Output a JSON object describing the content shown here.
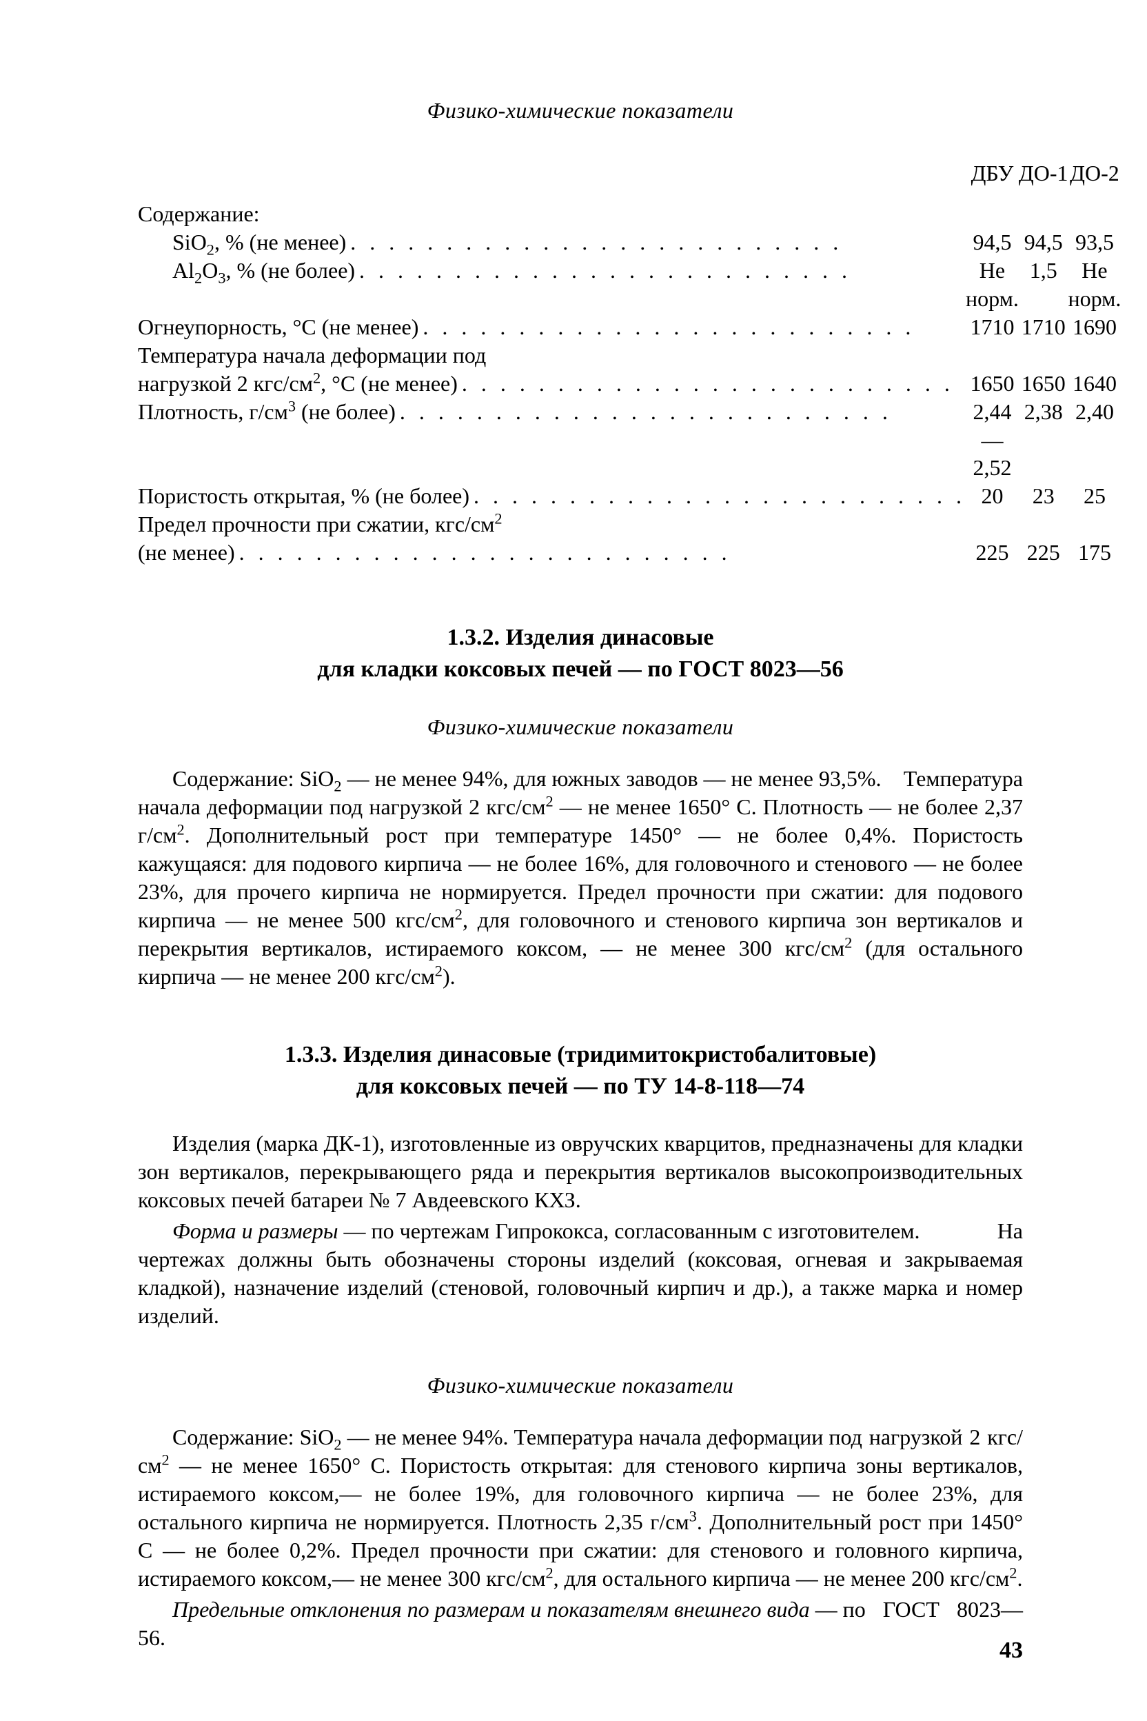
{
  "page_number": "43",
  "section1": {
    "title": "Физико-химические показатели",
    "columns": [
      "ДБУ",
      "ДО-1",
      "ДО-2"
    ],
    "group_label": "Содержание:",
    "rows": [
      {
        "label_html": "<span class='indent1'>SiO<sub>2</sub>, % (не менее)</span>",
        "dots": true,
        "vals": [
          "94,5",
          "94,5",
          "93,5"
        ]
      },
      {
        "label_html": "<span class='indent1'>Al<sub>2</sub>O<sub>3</sub>, % (не более)</span>",
        "dots": true,
        "vals": [
          "Не норм.",
          "1,5",
          "Не норм."
        ]
      },
      {
        "label_html": "Огнеупорность, °С (не менее)",
        "dots": true,
        "vals": [
          "1710",
          "1710",
          "1690"
        ]
      },
      {
        "label_html": "Температура начала деформации под",
        "dots": false,
        "vals": [
          "",
          "",
          ""
        ]
      },
      {
        "label_html": "нагрузкой 2 кгс/см<sup>2</sup>, °С (не менее)",
        "dots": true,
        "vals": [
          "1650",
          "1650",
          "1640"
        ]
      },
      {
        "label_html": "Плотность, г/см<sup>3</sup> (не более)",
        "dots": true,
        "vals": [
          "2,44—2,52",
          "2,38",
          "2,40"
        ]
      },
      {
        "label_html": "Пористость открытая, % (не более)",
        "dots": true,
        "vals": [
          "20",
          "23",
          "25"
        ]
      },
      {
        "label_html": "Предел прочности при сжатии, кгс/см<sup>2</sup>",
        "dots": false,
        "vals": [
          "",
          "",
          ""
        ]
      },
      {
        "label_html": "(не менее)",
        "dots": true,
        "vals": [
          "225",
          "225",
          "175"
        ]
      }
    ]
  },
  "section2": {
    "heading": "1.3.2. Изделия динасовые<br>для кладки коксовых печей — по ГОСТ 8023—56",
    "subtitle": "Физико-химические показатели",
    "body_html": "<span class='first'>Содержание: SiO<sub>2</sub> — не менее 94%, для южных заводов — не менее 93,5%.</span> Температура начала деформации под нагрузкой 2 кгс/см<sup>2</sup> — не менее 1650° С. Плотность — не более 2,37 г/см<sup>2</sup>. Дополнительный рост при температуре 1450° — не более 0,4%. Пористость кажущаяся: для подового кирпича — не более 16%, для головочного и стенового — не более 23%, для прочего кирпича не нормируется. Предел прочности при сжатии: для подового кирпича — не менее 500 кгс/см<sup>2</sup>, для головочного и стенового кирпича зон вертикалов и перекрытия вертикалов, истираемого коксом, — не менее 300 кгс/см<sup>2</sup> (для остального кирпича — не менее 200 кгс/см<sup>2</sup>)."
  },
  "section3": {
    "heading": "1.3.3. Изделия динасовые (тридимитокристобалитовые)<br>для коксовых печей — по ТУ 14-8-118—74",
    "p1_html": "<span class='first'>Изделия (марка ДК-1), изготовленные из овручских кварцитов, предназначены</span> для кладки зон вертикалов, перекрывающего ряда и перекрытия вертикалов высокопроизводительных коксовых печей батареи № 7 Авдеевского КХЗ.",
    "p2_html": "<span class='first'><span class='ital'>Форма и размеры</span> — по чертежам Гипрококса, согласованным с изготовителем.</span> На чертежах должны быть обозначены стороны изделий (коксовая, огневая и закрываемая кладкой), назначение изделий (стеновой, головочный кирпич и др.), а также марка и номер изделий.",
    "subtitle": "Физико-химические показатели",
    "p3_html": "<span class='first'>Содержание: SiO<sub>2</sub> — не менее 94%. Температура начала деформации под</span> нагрузкой 2 кгс/см<sup>2</sup> — не менее 1650° С. Пористость открытая: для стенового кирпича зоны вертикалов, истираемого коксом,— не более 19%, для головочного кирпича — не более 23%, для остального кирпича не нормируется. Плотность 2,35 г/см<sup>3</sup>. Дополнительный рост при 1450° С — не более 0,2%. Предел прочности при сжатии: для стенового и головного кирпича, истираемого коксом,— не менее 300 кгс/см<sup>2</sup>, для остального кирпича — не менее 200 кгс/см<sup>2</sup>.",
    "p4_html": "<span class='first'><span class='ital'>Предельные отклонения по размерам и показателям внешнего вида</span> — по</span> ГОСТ 8023—56."
  }
}
